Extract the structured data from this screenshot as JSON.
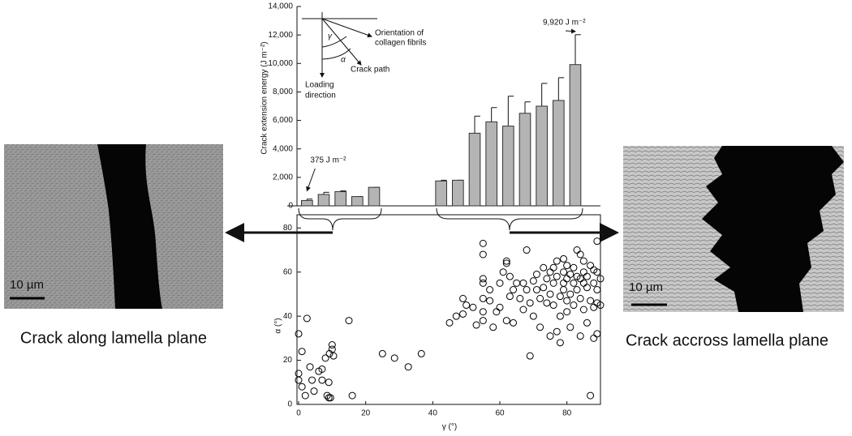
{
  "chart_data": [
    {
      "type": "bar",
      "ylabel": "Crack extension energy (J m⁻²)",
      "x": [
        2.5,
        7.5,
        12.5,
        17.5,
        22.5,
        42.5,
        47.5,
        52.5,
        57.5,
        62.5,
        67.5,
        72.5,
        77.5,
        82.5
      ],
      "values": [
        375,
        800,
        1000,
        650,
        1300,
        1750,
        1800,
        5100,
        5900,
        5600,
        6500,
        7000,
        7400,
        9920
      ],
      "errors": [
        100,
        150,
        50,
        0,
        0,
        50,
        0,
        1200,
        1000,
        2100,
        800,
        1600,
        1600,
        2100
      ],
      "value_labels": [
        "375 J m⁻²",
        null,
        null,
        null,
        null,
        null,
        null,
        null,
        null,
        null,
        null,
        null,
        null,
        "9,920 J m⁻²"
      ],
      "color": "#b4b4b4",
      "xlim": [
        0,
        90
      ],
      "ylim": [
        0,
        14000
      ],
      "yticks": [
        0,
        {
          "value": 2000,
          "label": "2,000"
        },
        {
          "value": 4000,
          "label": "4,000"
        },
        {
          "value": 6000,
          "label": "6,000"
        },
        {
          "value": 8000,
          "label": "8,000"
        },
        {
          "value": 10000,
          "label": "10,000"
        },
        {
          "value": 12000,
          "label": "12,000"
        },
        {
          "value": 14000,
          "label": "14,000"
        }
      ],
      "inset": {
        "gamma": "γ",
        "alpha": "α",
        "fibrils": [
          "Orientation of",
          "collagen fibrils"
        ],
        "crack": "Crack path",
        "loading": [
          "Loading",
          "direction"
        ]
      }
    },
    {
      "type": "scatter",
      "xlabel": "γ (°)",
      "ylabel": "α (°)",
      "x": [
        0,
        1,
        0,
        0,
        1,
        2,
        2.5,
        3.4,
        4,
        4.6,
        6,
        7,
        7,
        8,
        8.5,
        9,
        9,
        9.2,
        10,
        10,
        10.4,
        9.5,
        15,
        16,
        25,
        28.6,
        32.7,
        36.6,
        45,
        47,
        49,
        49,
        50,
        52,
        53,
        55,
        55,
        55,
        55,
        55,
        55,
        55,
        57,
        57,
        58,
        59,
        60,
        61,
        62,
        62,
        62,
        63,
        63,
        64,
        65,
        66,
        67,
        68,
        68,
        69,
        69,
        70,
        70,
        71,
        72,
        72,
        73,
        73,
        74,
        74,
        75,
        75,
        75,
        76,
        76,
        77,
        77,
        77,
        78,
        78,
        78,
        79,
        79,
        79,
        79,
        80,
        80,
        80,
        80,
        81,
        81,
        81,
        82,
        82,
        82,
        83,
        83,
        83,
        84,
        84,
        84,
        85,
        85,
        85,
        85,
        86,
        86,
        86,
        87,
        87,
        87,
        88,
        88,
        88,
        88,
        89,
        89,
        89,
        89,
        89,
        90,
        90,
        67,
        71,
        76,
        64,
        60,
        84
      ],
      "values": [
        32,
        24,
        14,
        11,
        8,
        4,
        39,
        17,
        11,
        6,
        15,
        16,
        11,
        21,
        4,
        3,
        10,
        23,
        27,
        25,
        22,
        3,
        38,
        4,
        23,
        21,
        17,
        23,
        37,
        40,
        41,
        48,
        45,
        44,
        36,
        73,
        68,
        57,
        55,
        48,
        42,
        38,
        52,
        47,
        35,
        42,
        55,
        60,
        65,
        64,
        38,
        58,
        49,
        37,
        55,
        48,
        43,
        70,
        52,
        46,
        22,
        56,
        40,
        59,
        48,
        35,
        62,
        53,
        57,
        46,
        60,
        50,
        31,
        55,
        45,
        65,
        58,
        33,
        49,
        40,
        28,
        66,
        60,
        55,
        52,
        63,
        57,
        47,
        42,
        59,
        50,
        35,
        55,
        45,
        62,
        70,
        58,
        52,
        68,
        48,
        31,
        65,
        60,
        55,
        43,
        58,
        53,
        37,
        63,
        47,
        4,
        61,
        55,
        44,
        30,
        74,
        60,
        52,
        46,
        32,
        57,
        45,
        55,
        52,
        62,
        52,
        44,
        57
      ],
      "color": "#000000",
      "xlim": [
        0,
        90
      ],
      "ylim": [
        0,
        86
      ],
      "xticks": [
        0,
        20,
        40,
        60,
        80
      ],
      "yticks": [
        0,
        20,
        40,
        60,
        80
      ]
    }
  ],
  "left_image": {
    "scale_label": "10 µm",
    "caption": "Crack along lamella plane"
  },
  "right_image": {
    "scale_label": "10 µm",
    "caption": "Crack accross lamella plane"
  }
}
